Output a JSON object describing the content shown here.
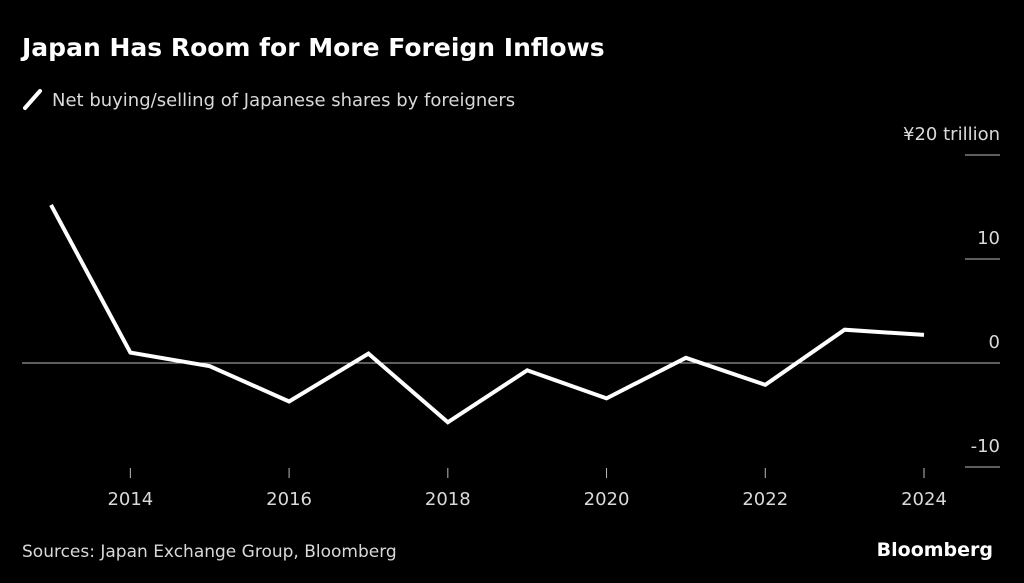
{
  "chart_data": {
    "type": "line",
    "title": "Japan Has Room for More Foreign Inflows",
    "x": [
      2013,
      2014,
      2015,
      2016,
      2017,
      2018,
      2019,
      2020,
      2021,
      2022,
      2023,
      2024
    ],
    "series": [
      {
        "name": "Net buying/selling of Japanese shares by foreigners",
        "color": "#ffffff",
        "values": [
          15.2,
          1.0,
          -0.3,
          -3.7,
          0.9,
          -5.7,
          -0.7,
          -3.4,
          0.5,
          -2.1,
          3.2,
          2.7
        ]
      }
    ],
    "xlim": [
      2013,
      2024
    ],
    "xticks": [
      2014,
      2016,
      2018,
      2020,
      2022,
      2024
    ],
    "ylim": [
      -10,
      20
    ],
    "yticks": [
      {
        "value": 20,
        "label": "¥20 trillion"
      },
      10,
      0,
      -10
    ],
    "source": "Sources: Japan Exchange Group, Bloomberg",
    "credit": "Bloomberg"
  }
}
